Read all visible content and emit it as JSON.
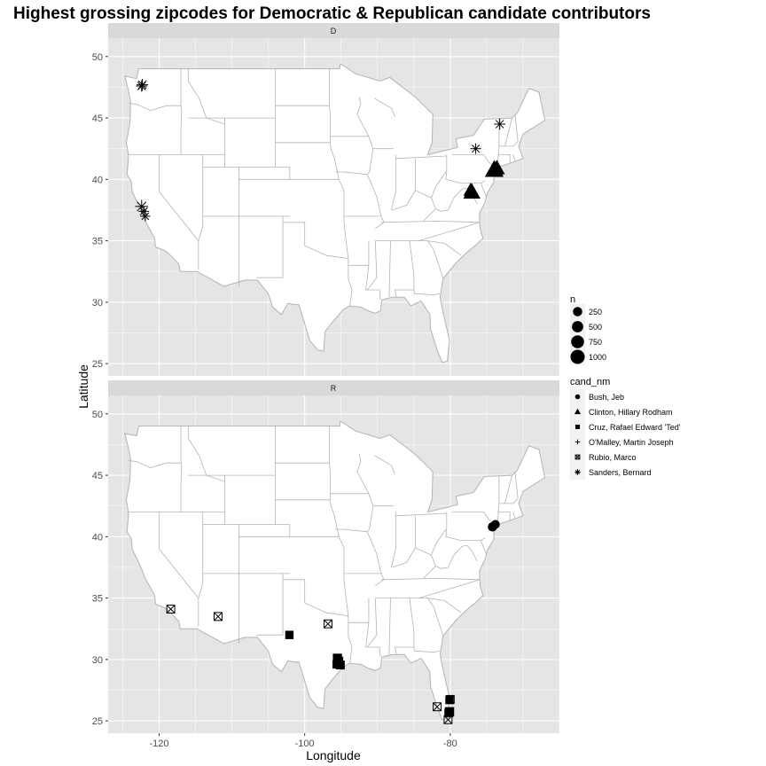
{
  "chart_data": {
    "type": "scatter",
    "title": "Highest grossing zipcodes for Democratic & Republican candidate contributors",
    "xlabel": "Longitude",
    "ylabel": "Latitude",
    "xlim": [
      -127,
      -65
    ],
    "x_ticks": [
      -120,
      -100,
      -80
    ],
    "y_ticks": [
      25,
      30,
      35,
      40,
      45,
      50
    ],
    "grid": true,
    "background": "map of the contiguous United States (state outlines)",
    "colors": {
      "panel": "#e5e5e5",
      "strip": "#d9d9d9",
      "grid": "#ffffff",
      "land": "#ffffff",
      "border": "#b3b3b3",
      "points": "#000000"
    },
    "legend_position": "right",
    "size_legend": {
      "title": "n",
      "values": [
        250,
        500,
        750,
        1000
      ]
    },
    "shape_legend": {
      "title": "cand_nm",
      "entries": [
        {
          "label": "Bush, Jeb",
          "shape": "circle"
        },
        {
          "label": "Clinton, Hillary Rodham",
          "shape": "triangle"
        },
        {
          "label": "Cruz, Rafael Edward 'Ted'",
          "shape": "square"
        },
        {
          "label": "O'Malley, Martin Joseph",
          "shape": "plus"
        },
        {
          "label": "Rubio, Marco",
          "shape": "square-cross"
        },
        {
          "label": "Sanders, Bernard",
          "shape": "asterisk"
        }
      ]
    },
    "panels": [
      {
        "strip": "D",
        "ylim": [
          24,
          51.5
        ],
        "points": [
          {
            "cand": "Sanders, Bernard",
            "lon": -122.3,
            "lat": 47.7,
            "n": 350
          },
          {
            "cand": "Sanders, Bernard",
            "lon": -122.4,
            "lat": 47.6,
            "n": 300
          },
          {
            "cand": "Sanders, Bernard",
            "lon": -122.4,
            "lat": 37.8,
            "n": 500
          },
          {
            "cand": "Sanders, Bernard",
            "lon": -122.1,
            "lat": 37.4,
            "n": 250
          },
          {
            "cand": "Sanders, Bernard",
            "lon": -121.9,
            "lat": 37.0,
            "n": 200
          },
          {
            "cand": "Sanders, Bernard",
            "lon": -73.2,
            "lat": 44.5,
            "n": 300
          },
          {
            "cand": "Sanders, Bernard",
            "lon": -76.5,
            "lat": 42.5,
            "n": 250
          },
          {
            "cand": "Clinton, Hillary Rodham",
            "lon": -73.96,
            "lat": 40.77,
            "n": 1100
          },
          {
            "cand": "Clinton, Hillary Rodham",
            "lon": -73.6,
            "lat": 40.9,
            "n": 700
          },
          {
            "cand": "Clinton, Hillary Rodham",
            "lon": -77.03,
            "lat": 38.95,
            "n": 850
          },
          {
            "cand": "Clinton, Hillary Rodham",
            "lon": -77.2,
            "lat": 39.1,
            "n": 500
          }
        ]
      },
      {
        "strip": "R",
        "ylim": [
          24,
          51.5
        ],
        "points": [
          {
            "cand": "Bush, Jeb",
            "lon": -74.2,
            "lat": 40.8,
            "n": 250
          },
          {
            "cand": "Bush, Jeb",
            "lon": -73.8,
            "lat": 41.0,
            "n": 200
          },
          {
            "cand": "Cruz, Rafael Edward 'Ted'",
            "lon": -102.1,
            "lat": 32.0,
            "n": 250
          },
          {
            "cand": "Cruz, Rafael Edward 'Ted'",
            "lon": -95.4,
            "lat": 29.8,
            "n": 500
          },
          {
            "cand": "Cruz, Rafael Edward 'Ted'",
            "lon": -95.5,
            "lat": 30.1,
            "n": 350
          },
          {
            "cand": "Cruz, Rafael Edward 'Ted'",
            "lon": -95.1,
            "lat": 29.55,
            "n": 300
          },
          {
            "cand": "Cruz, Rafael Edward 'Ted'",
            "lon": -95.6,
            "lat": 29.6,
            "n": 250
          },
          {
            "cand": "Cruz, Rafael Edward 'Ted'",
            "lon": -80.1,
            "lat": 25.75,
            "n": 350
          },
          {
            "cand": "Cruz, Rafael Edward 'Ted'",
            "lon": -80.1,
            "lat": 26.7,
            "n": 250
          },
          {
            "cand": "Rubio, Marco",
            "lon": -118.4,
            "lat": 34.1,
            "n": 250
          },
          {
            "cand": "Rubio, Marco",
            "lon": -111.9,
            "lat": 33.5,
            "n": 250
          },
          {
            "cand": "Rubio, Marco",
            "lon": -96.8,
            "lat": 32.9,
            "n": 250
          },
          {
            "cand": "Rubio, Marco",
            "lon": -80.0,
            "lat": 26.75,
            "n": 250
          },
          {
            "cand": "Rubio, Marco",
            "lon": -81.8,
            "lat": 26.15,
            "n": 250
          },
          {
            "cand": "Rubio, Marco",
            "lon": -80.3,
            "lat": 25.1,
            "n": 250
          },
          {
            "cand": "Rubio, Marco",
            "lon": -80.2,
            "lat": 25.65,
            "n": 250
          }
        ]
      }
    ]
  }
}
